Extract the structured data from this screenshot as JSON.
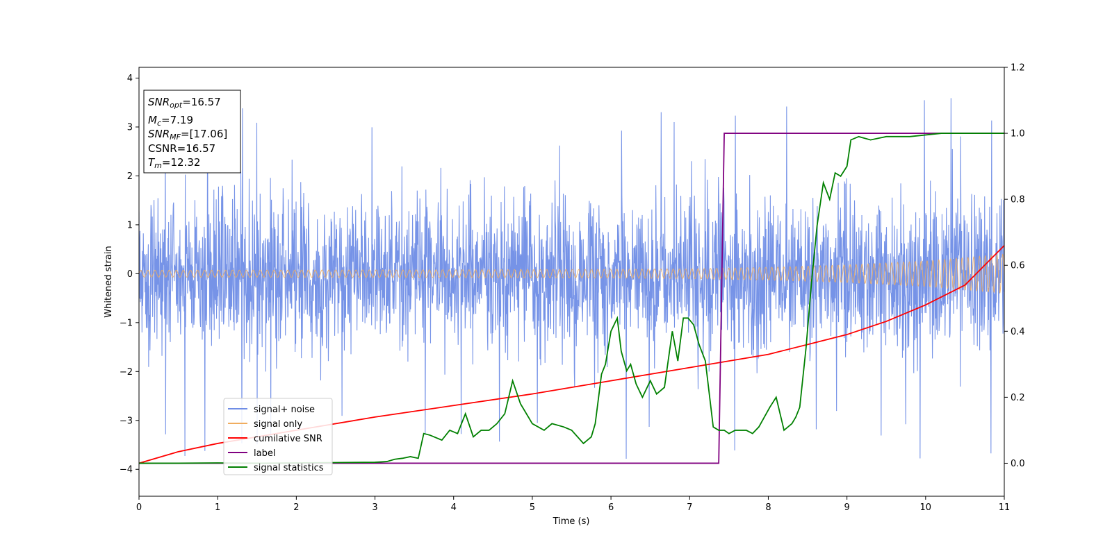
{
  "chart_data": {
    "type": "line",
    "xlabel": "Time (s)",
    "ylabel": "Whitened strain",
    "xlim": [
      0,
      11
    ],
    "ylim_left": [
      -4.55,
      4.22
    ],
    "ylim_right": [
      -0.1,
      1.2
    ],
    "xticks": [
      0,
      1,
      2,
      3,
      4,
      5,
      6,
      7,
      8,
      9,
      10,
      11
    ],
    "yticks_left": [
      -4,
      -3,
      -2,
      -1,
      0,
      1,
      2,
      3,
      4
    ],
    "yticks_right": [
      0.0,
      0.2,
      0.4,
      0.6,
      0.8,
      1.0,
      1.2
    ],
    "info_box": [
      {
        "base": "SNR",
        "sub": "opt",
        "value": "=16.57"
      },
      {
        "base": "M",
        "sub": "c",
        "value": "=7.19"
      },
      {
        "base": "SNR",
        "sub": "MF",
        "value": "=[17.06]"
      },
      {
        "base": "CSNR",
        "sub": "",
        "value": "=16.57"
      },
      {
        "base": "T",
        "sub": "m",
        "value": "=12.32"
      }
    ],
    "legend_position": "lower left",
    "series": [
      {
        "name": "signal+ noise",
        "axis": "left",
        "color": "#6f8de6",
        "description_kind": "noise envelope",
        "envelope_typical": [
          -1.6,
          1.6
        ],
        "envelope_extremes": [
          -4.2,
          3.85
        ]
      },
      {
        "name": "signal only",
        "axis": "left",
        "color": "#f0ad5f",
        "amplitude_x": [
          0,
          2,
          4,
          6,
          7,
          8,
          9,
          10,
          11
        ],
        "amplitude": [
          0.07,
          0.075,
          0.08,
          0.09,
          0.1,
          0.13,
          0.18,
          0.26,
          0.4
        ]
      },
      {
        "name": "cumilative SNR",
        "axis": "right",
        "color": "#ff0000",
        "x": [
          0,
          0.5,
          1,
          2,
          3,
          4,
          5,
          6,
          7,
          7.5,
          8,
          8.5,
          9,
          9.5,
          10,
          10.5,
          11
        ],
        "y": [
          0.0,
          0.035,
          0.06,
          0.1,
          0.14,
          0.175,
          0.21,
          0.25,
          0.29,
          0.31,
          0.33,
          0.36,
          0.39,
          0.43,
          0.48,
          0.54,
          0.66
        ]
      },
      {
        "name": "label",
        "axis": "right",
        "color": "#800080",
        "x": [
          0,
          7.37,
          7.44,
          11
        ],
        "y": [
          0,
          0,
          1,
          1
        ]
      },
      {
        "name": "signal statistics",
        "axis": "right",
        "color": "#008000",
        "x": [
          0,
          0.5,
          1,
          1.5,
          2,
          2.5,
          3,
          3.15,
          3.25,
          3.35,
          3.45,
          3.55,
          3.62,
          3.7,
          3.85,
          3.95,
          4.05,
          4.15,
          4.25,
          4.35,
          4.45,
          4.55,
          4.65,
          4.75,
          4.85,
          5.0,
          5.15,
          5.25,
          5.4,
          5.5,
          5.65,
          5.75,
          5.8,
          5.88,
          5.93,
          6.0,
          6.08,
          6.13,
          6.2,
          6.25,
          6.32,
          6.4,
          6.5,
          6.58,
          6.68,
          6.78,
          6.85,
          6.92,
          6.98,
          7.05,
          7.12,
          7.2,
          7.3,
          7.37,
          7.44,
          7.5,
          7.58,
          7.65,
          7.72,
          7.8,
          7.88,
          7.95,
          8.02,
          8.1,
          8.2,
          8.3,
          8.35,
          8.4,
          8.48,
          8.55,
          8.62,
          8.7,
          8.78,
          8.85,
          8.92,
          9.0,
          9.05,
          9.15,
          9.3,
          9.5,
          9.8,
          10.2,
          10.6,
          11.0
        ],
        "y": [
          0.0,
          0.0,
          0.001,
          0.0,
          0.001,
          0.002,
          0.003,
          0.005,
          0.012,
          0.015,
          0.02,
          0.015,
          0.09,
          0.085,
          0.07,
          0.1,
          0.09,
          0.15,
          0.08,
          0.1,
          0.1,
          0.12,
          0.15,
          0.25,
          0.18,
          0.12,
          0.1,
          0.12,
          0.11,
          0.1,
          0.06,
          0.08,
          0.12,
          0.27,
          0.3,
          0.4,
          0.44,
          0.34,
          0.28,
          0.3,
          0.24,
          0.2,
          0.25,
          0.21,
          0.23,
          0.4,
          0.31,
          0.44,
          0.44,
          0.42,
          0.36,
          0.31,
          0.11,
          0.1,
          0.1,
          0.09,
          0.1,
          0.1,
          0.1,
          0.09,
          0.11,
          0.14,
          0.17,
          0.2,
          0.1,
          0.12,
          0.14,
          0.17,
          0.35,
          0.55,
          0.72,
          0.85,
          0.8,
          0.88,
          0.87,
          0.9,
          0.98,
          0.99,
          0.98,
          0.99,
          0.99,
          1.0,
          1.0,
          1.0
        ]
      }
    ]
  }
}
